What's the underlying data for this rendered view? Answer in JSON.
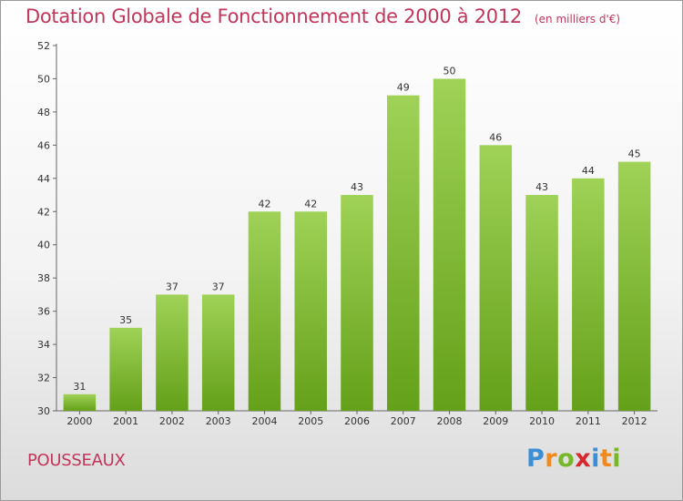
{
  "header": {
    "title": "Dotation Globale de Fonctionnement de 2000 à 2012",
    "unit": "(en milliers d'€)"
  },
  "footer": {
    "commune": "POUSSEAUX",
    "logo": "Proxiti"
  },
  "colors": {
    "title": "#c1365a",
    "bar_top": "#9fd257",
    "bar_bottom": "#64a019"
  },
  "chart_data": {
    "type": "bar",
    "title": "Dotation Globale de Fonctionnement de 2000 à 2012",
    "subtitle": "(en milliers d'€)",
    "categories": [
      "2000",
      "2001",
      "2002",
      "2003",
      "2004",
      "2005",
      "2006",
      "2007",
      "2008",
      "2009",
      "2010",
      "2011",
      "2012"
    ],
    "values": [
      31,
      35,
      37,
      37,
      42,
      42,
      43,
      49,
      50,
      46,
      43,
      44,
      45
    ],
    "ylim": [
      30,
      52
    ],
    "yticks": [
      30,
      32,
      34,
      36,
      38,
      40,
      42,
      44,
      46,
      48,
      50,
      52
    ],
    "grid": false,
    "legend": "none"
  }
}
